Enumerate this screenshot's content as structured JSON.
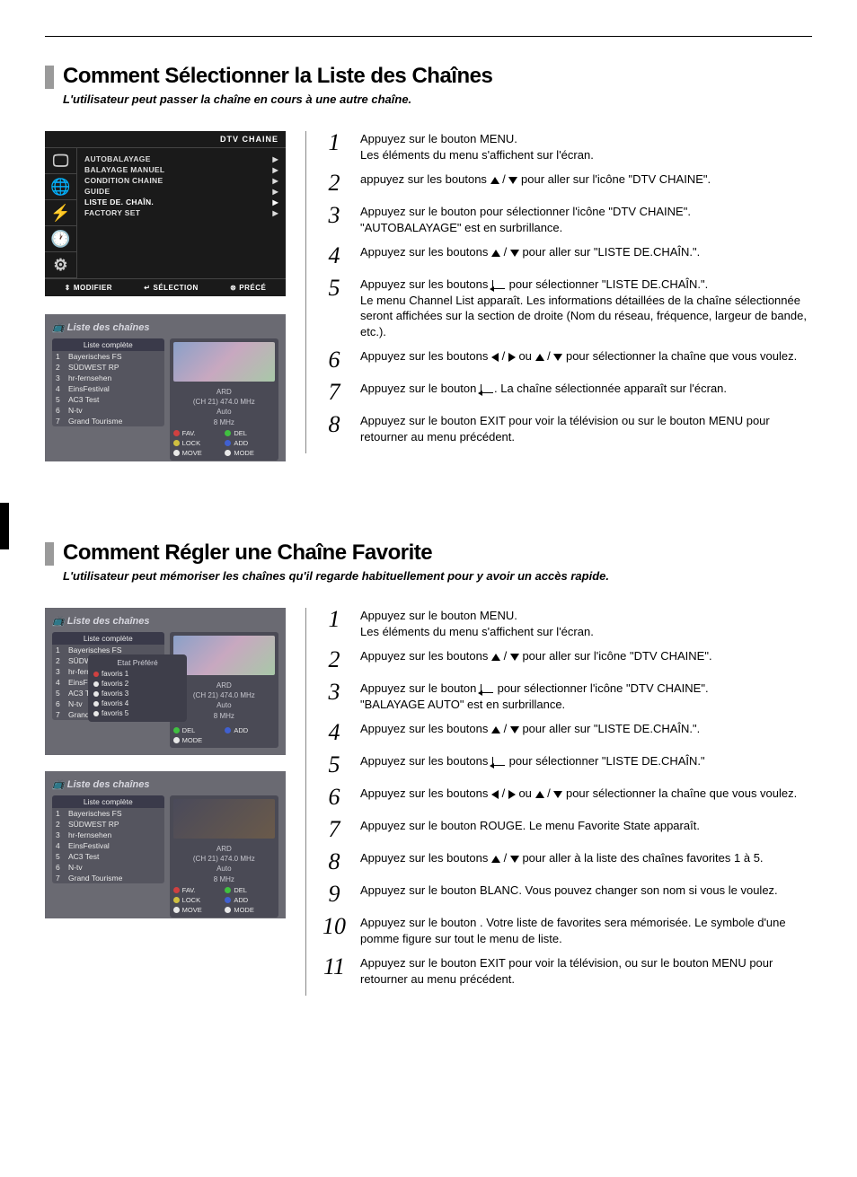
{
  "colors": {
    "title_bar": "#9a9a9a",
    "osd_bg": "#1a1a1a",
    "screenshot_bg": "#6a6a72",
    "dot_red": "#d04040",
    "dot_green": "#40c040",
    "dot_yellow": "#d0c040",
    "dot_blue": "#4060d0",
    "dot_white": "#e8e8e8"
  },
  "section1": {
    "title": "Comment Sélectionner la Liste des Chaînes",
    "subtitle": "L'utilisateur peut passer la chaîne en cours à une autre chaîne.",
    "osd": {
      "header": "DTV CHAINE",
      "items": [
        {
          "label": "AUTOBALAYAGE",
          "hl": false
        },
        {
          "label": "BALAYAGE MANUEL",
          "hl": false
        },
        {
          "label": "CONDITION CHAINE",
          "hl": false
        },
        {
          "label": "GUIDE",
          "hl": false
        },
        {
          "label": "LISTE DE. CHAÎN.",
          "hl": true
        },
        {
          "label": "FACTORY SET",
          "hl": false
        }
      ],
      "footer": {
        "a": "MODIFIER",
        "b": "SÉLECTION",
        "c": "PRÉCÉ"
      }
    },
    "chlist": {
      "title": "Liste des chaînes",
      "list_header": "Liste complète",
      "rows": [
        {
          "n": "1",
          "name": "Bayerisches FS"
        },
        {
          "n": "2",
          "name": "SÜDWEST RP"
        },
        {
          "n": "3",
          "name": "hr-fernsehen"
        },
        {
          "n": "4",
          "name": "EinsFestival"
        },
        {
          "n": "5",
          "name": "AC3 Test"
        },
        {
          "n": "6",
          "name": "N-tv"
        },
        {
          "n": "7",
          "name": "Grand Tourisme"
        }
      ],
      "info_header": "ARD",
      "info_line1": "(CH 21) 474.0 MHz",
      "info_line2": "Auto",
      "info_line3": "8 MHz",
      "btns": {
        "fav": "FAV.",
        "del": "DEL",
        "lock": "LOCK",
        "add": "ADD",
        "move": "MOVE",
        "mode": "MODE"
      }
    },
    "steps": [
      {
        "n": "1",
        "parts": [
          {
            "t": "Appuyez sur le bouton MENU."
          },
          {
            "br": true
          },
          {
            "t": "Les éléments du menu s'affichent sur l'écran."
          }
        ]
      },
      {
        "n": "2",
        "parts": [
          {
            "t": "appuyez sur les boutons "
          },
          {
            "icon": "up"
          },
          {
            "t": " / "
          },
          {
            "icon": "down"
          },
          {
            "t": " pour aller sur l'icône \"DTV CHAINE\"."
          }
        ]
      },
      {
        "n": "3",
        "parts": [
          {
            "t": "Appuyez sur le bouton  pour sélectionner l'icône \"DTV CHAINE\"."
          },
          {
            "br": true
          },
          {
            "t": "\"AUTOBALAYAGE\" est en surbrillance."
          }
        ]
      },
      {
        "n": "4",
        "parts": [
          {
            "t": "Appuyez sur les boutons "
          },
          {
            "icon": "up"
          },
          {
            "t": " / "
          },
          {
            "icon": "down"
          },
          {
            "t": " pour aller sur \"LISTE DE.CHAÎN.\"."
          }
        ]
      },
      {
        "n": "5",
        "parts": [
          {
            "t": "Appuyez sur les boutons "
          },
          {
            "icon": "enter"
          },
          {
            "t": " pour sélectionner \"LISTE DE.CHAÎN.\"."
          },
          {
            "br": true
          },
          {
            "t": "Le menu Channel List apparaît. Les informations détaillées de la chaîne sélectionnée seront affichées sur la section de droite (Nom du réseau, fréquence, largeur de bande, etc.)."
          }
        ]
      },
      {
        "n": "6",
        "parts": [
          {
            "t": "Appuyez sur les boutons "
          },
          {
            "icon": "left"
          },
          {
            "t": " / "
          },
          {
            "icon": "right"
          },
          {
            "t": " ou "
          },
          {
            "icon": "up"
          },
          {
            "t": " / "
          },
          {
            "icon": "down"
          },
          {
            "t": " pour sélectionner la chaîne que vous voulez."
          }
        ]
      },
      {
        "n": "7",
        "parts": [
          {
            "t": "Appuyez sur le bouton "
          },
          {
            "icon": "enter"
          },
          {
            "t": ". La chaîne sélectionnée apparaît sur l'écran."
          }
        ]
      },
      {
        "n": "8",
        "parts": [
          {
            "t": "Appuyez sur le bouton EXIT pour voir la télévision ou sur le bouton MENU pour retourner au menu précédent."
          }
        ]
      }
    ]
  },
  "section2": {
    "title": "Comment Régler une Chaîne Favorite",
    "subtitle": "L'utilisateur peut mémoriser les chaînes qu'il regarde habituellement pour y avoir un accès rapide.",
    "fav_popup": {
      "header": "Etat Préféré",
      "rows": [
        "favoris 1",
        "favoris 2",
        "favoris 3",
        "favoris 4",
        "favoris 5"
      ]
    },
    "steps": [
      {
        "n": "1",
        "parts": [
          {
            "t": "Appuyez sur le bouton MENU."
          },
          {
            "br": true
          },
          {
            "t": "Les éléments du menu s'affichent sur l'écran."
          }
        ]
      },
      {
        "n": "2",
        "parts": [
          {
            "t": "Appuyez sur les boutons "
          },
          {
            "icon": "up"
          },
          {
            "t": " / "
          },
          {
            "icon": "down"
          },
          {
            "t": " pour aller sur l'icône \"DTV CHAINE\"."
          }
        ]
      },
      {
        "n": "3",
        "parts": [
          {
            "t": "Appuyez sur le bouton "
          },
          {
            "icon": "enter"
          },
          {
            "t": " pour sélectionner l'icône \"DTV CHAINE\"."
          },
          {
            "br": true
          },
          {
            "t": "\"BALAYAGE AUTO\" est en surbrillance."
          }
        ]
      },
      {
        "n": "4",
        "parts": [
          {
            "t": "Appuyez sur les boutons "
          },
          {
            "icon": "up"
          },
          {
            "t": " / "
          },
          {
            "icon": "down"
          },
          {
            "t": " pour aller sur \"LISTE DE.CHAÎN.\"."
          }
        ]
      },
      {
        "n": "5",
        "parts": [
          {
            "t": "Appuyez sur les boutons "
          },
          {
            "icon": "enter"
          },
          {
            "t": " pour sélectionner \"LISTE DE.CHAÎN.\""
          }
        ]
      },
      {
        "n": "6",
        "parts": [
          {
            "t": "Appuyez sur les boutons "
          },
          {
            "icon": "left"
          },
          {
            "t": " / "
          },
          {
            "icon": "right"
          },
          {
            "t": " ou "
          },
          {
            "icon": "up"
          },
          {
            "t": " / "
          },
          {
            "icon": "down"
          },
          {
            "t": " pour sélectionner la chaîne que vous voulez."
          }
        ]
      },
      {
        "n": "7",
        "parts": [
          {
            "t": "Appuyez sur le bouton ROUGE. Le menu Favorite State apparaît."
          }
        ]
      },
      {
        "n": "8",
        "parts": [
          {
            "t": "Appuyez sur les boutons "
          },
          {
            "icon": "up"
          },
          {
            "t": " / "
          },
          {
            "icon": "down"
          },
          {
            "t": " pour aller à la liste des chaînes favorites 1 à 5."
          }
        ]
      },
      {
        "n": "9",
        "parts": [
          {
            "t": "Appuyez sur le bouton BLANC. Vous pouvez changer son nom si vous le voulez."
          }
        ]
      },
      {
        "n": "10",
        "parts": [
          {
            "t": "Appuyez sur le bouton . Votre liste de favorites sera mémorisée. Le symbole d'une pomme figure sur tout le menu de liste."
          }
        ]
      },
      {
        "n": "11",
        "parts": [
          {
            "t": "Appuyez sur le bouton EXIT pour voir la télévision, ou sur le bouton MENU pour retourner au menu précédent."
          }
        ]
      }
    ]
  }
}
